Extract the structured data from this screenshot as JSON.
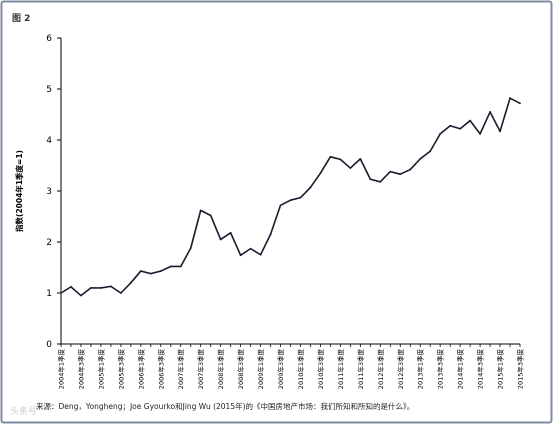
{
  "figure_label": "图 2",
  "source_note": "来源：Deng，Yongheng；Joe Gyourko和Jing Wu (2015年)的《中国房地产市场：我们所知和所知的是什么》。",
  "watermark": "头条号",
  "colors": {
    "frame": "#7f8da3",
    "line": "#1a1a2e",
    "axis": "#000000"
  },
  "chart_data": {
    "type": "line",
    "title": "",
    "ylabel": "指数(2004年1季度=1)",
    "xlabel": "",
    "ylim": [
      0,
      6
    ],
    "yticks": [
      0,
      1,
      2,
      3,
      4,
      5,
      6
    ],
    "grid": false,
    "x_tick_labels": [
      "2004年1季度",
      "2004年3季度",
      "2005年1季度",
      "2005年3季度",
      "2006年1季度",
      "2006年3季度",
      "2007年1季度",
      "2007年3季度",
      "2008年1季度",
      "2008年3季度",
      "2009年1季度",
      "2009年3季度",
      "2010年1季度",
      "2010年3季度",
      "2011年1季度",
      "2011年3季度",
      "2012年1季度",
      "2012年3季度",
      "2013年1季度",
      "2013年3季度",
      "2014年1季度",
      "2014年3季度",
      "2015年1季度",
      "2015年3季度"
    ],
    "series": [
      {
        "values": [
          1.0,
          1.12,
          0.95,
          1.1,
          1.1,
          1.13,
          1.0,
          1.2,
          1.43,
          1.38,
          1.43,
          1.52,
          1.52,
          1.88,
          2.62,
          2.52,
          2.05,
          2.18,
          1.74,
          1.87,
          1.75,
          2.15,
          2.72,
          2.82,
          2.87,
          3.07,
          3.35,
          3.67,
          3.62,
          3.45,
          3.63,
          3.23,
          3.18,
          3.38,
          3.33,
          3.42,
          3.63,
          3.78,
          4.12,
          4.28,
          4.22,
          4.38,
          4.12,
          4.55,
          4.17,
          4.82,
          4.72
        ]
      }
    ]
  }
}
